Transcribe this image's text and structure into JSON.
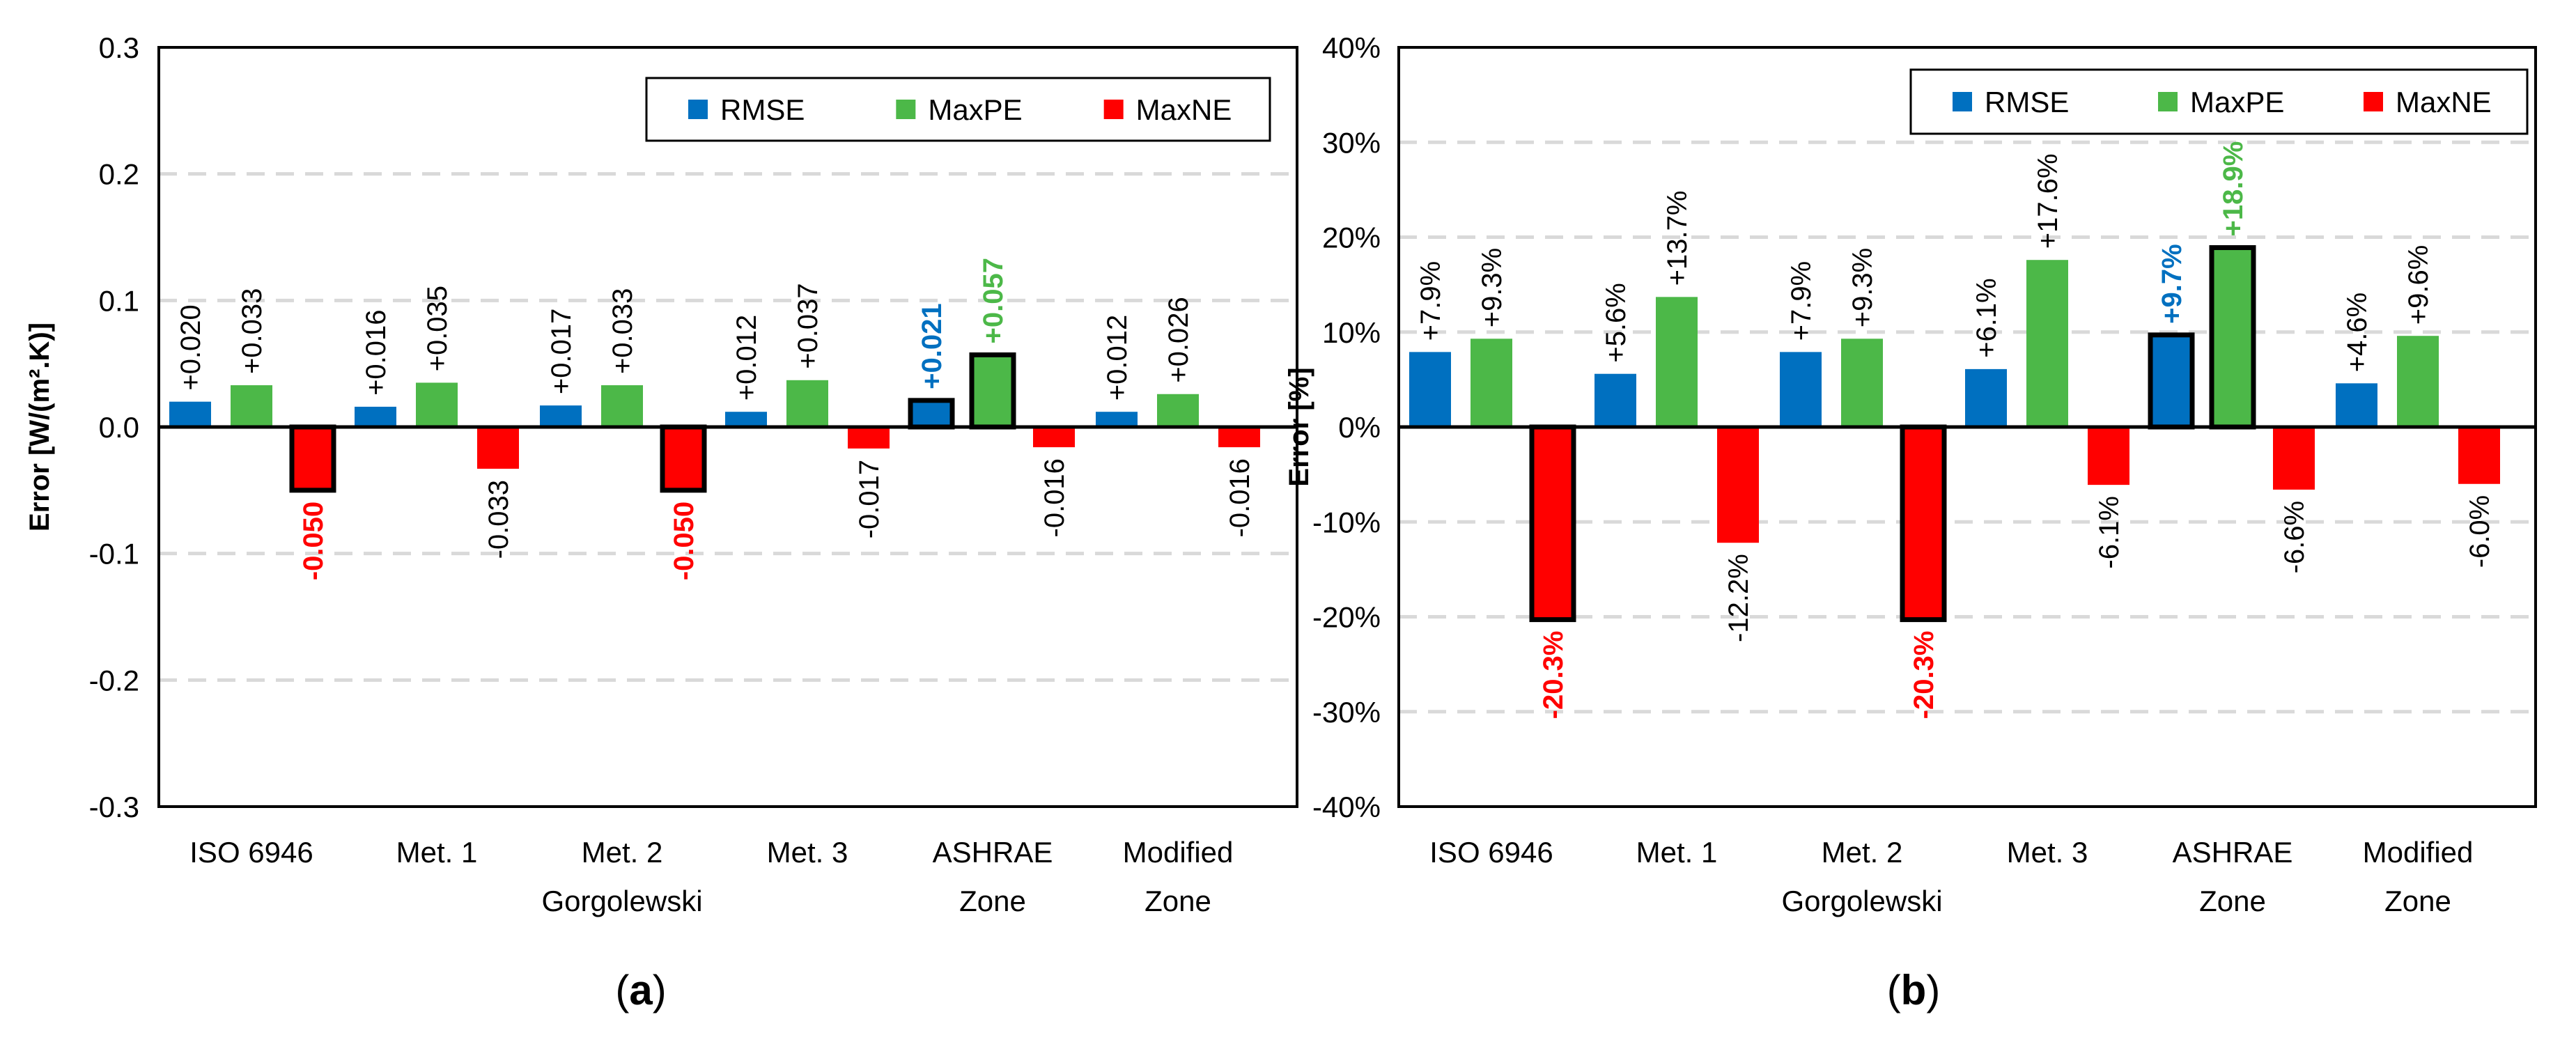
{
  "chart_data": [
    {
      "type": "bar",
      "panel_label": "a",
      "categories": [
        "ISO 6946",
        "Met. 1",
        "Met. 2",
        "Met. 3",
        "ASHRAE Zone",
        "Modified Zone"
      ],
      "category_lines": [
        [
          "ISO 6946"
        ],
        [
          "Met. 1"
        ],
        [
          "Met. 2"
        ],
        [
          "Met. 3"
        ],
        [
          "ASHRAE",
          "Zone"
        ],
        [
          "Modified",
          "Zone"
        ]
      ],
      "group_label": "Gorgolewski",
      "ylabel": "Error [W/(m².K)]",
      "ylim": [
        -0.3,
        0.3
      ],
      "yticks": [
        -0.3,
        -0.2,
        -0.1,
        0.0,
        0.1,
        0.2,
        0.3
      ],
      "ytick_labels": [
        "-0.3",
        "-0.2",
        "-0.1",
        "0.0",
        "0.1",
        "0.2",
        "0.3"
      ],
      "grid": true,
      "legend_position": "top-right",
      "series": [
        {
          "name": "RMSE",
          "color": "#0070C0",
          "values": [
            0.02,
            0.016,
            0.017,
            0.012,
            0.021,
            0.012
          ],
          "labels": [
            "+0.020",
            "+0.016",
            "+0.017",
            "+0.012",
            "+0.021",
            "+0.012"
          ],
          "highlight": [
            false,
            false,
            false,
            false,
            true,
            false
          ]
        },
        {
          "name": "MaxPE",
          "color": "#4CB848",
          "values": [
            0.033,
            0.035,
            0.033,
            0.037,
            0.057,
            0.026
          ],
          "labels": [
            "+0.033",
            "+0.035",
            "+0.033",
            "+0.037",
            "+0.057",
            "+0.026"
          ],
          "highlight": [
            false,
            false,
            false,
            false,
            true,
            false
          ]
        },
        {
          "name": "MaxNE",
          "color": "#FF0000",
          "values": [
            -0.05,
            -0.033,
            -0.05,
            -0.017,
            -0.016,
            -0.016
          ],
          "labels": [
            "-0.050",
            "-0.033",
            "-0.050",
            "-0.017",
            "-0.016",
            "-0.016"
          ],
          "highlight": [
            true,
            false,
            true,
            false,
            false,
            false
          ]
        }
      ]
    },
    {
      "type": "bar",
      "panel_label": "b",
      "categories": [
        "ISO 6946",
        "Met. 1",
        "Met. 2",
        "Met. 3",
        "ASHRAE Zone",
        "Modified Zone"
      ],
      "category_lines": [
        [
          "ISO 6946"
        ],
        [
          "Met. 1"
        ],
        [
          "Met. 2"
        ],
        [
          "Met. 3"
        ],
        [
          "ASHRAE",
          "Zone"
        ],
        [
          "Modified",
          "Zone"
        ]
      ],
      "group_label": "Gorgolewski",
      "ylabel": "Error [%]",
      "ylim": [
        -40,
        40
      ],
      "yticks": [
        -40,
        -30,
        -20,
        -10,
        0,
        10,
        20,
        30,
        40
      ],
      "ytick_labels": [
        "-40%",
        "-30%",
        "-20%",
        "-10%",
        "0%",
        "10%",
        "20%",
        "30%",
        "40%"
      ],
      "grid": true,
      "legend_position": "top-right",
      "series": [
        {
          "name": "RMSE",
          "color": "#0070C0",
          "values": [
            7.9,
            5.6,
            7.9,
            6.1,
            9.7,
            4.6
          ],
          "labels": [
            "+7.9%",
            "+5.6%",
            "+7.9%",
            "+6.1%",
            "+9.7%",
            "+4.6%"
          ],
          "highlight": [
            false,
            false,
            false,
            false,
            true,
            false
          ]
        },
        {
          "name": "MaxPE",
          "color": "#4CB848",
          "values": [
            9.3,
            13.7,
            9.3,
            17.6,
            18.9,
            9.6
          ],
          "labels": [
            "+9.3%",
            "+13.7%",
            "+9.3%",
            "+17.6%",
            "+18.9%",
            "+9.6%"
          ],
          "highlight": [
            false,
            false,
            false,
            false,
            true,
            false
          ]
        },
        {
          "name": "MaxNE",
          "color": "#FF0000",
          "values": [
            -20.3,
            -12.2,
            -20.3,
            -6.1,
            -6.6,
            -6.0
          ],
          "labels": [
            "-20.3%",
            "-12.2%",
            "-20.3%",
            "-6.1%",
            "-6.6%",
            "-6.0%"
          ],
          "highlight": [
            true,
            false,
            true,
            false,
            false,
            false
          ]
        }
      ]
    }
  ]
}
